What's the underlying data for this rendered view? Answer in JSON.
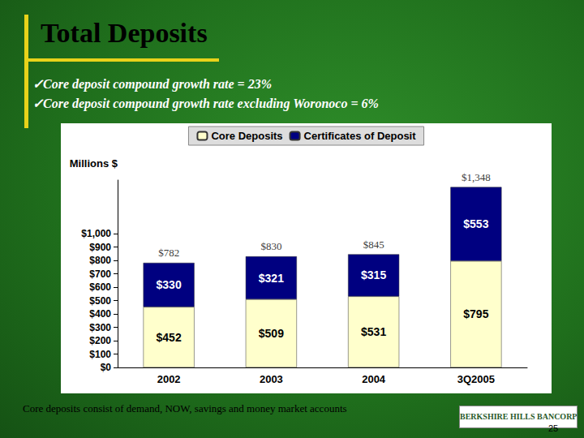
{
  "chart_data": {
    "type": "bar",
    "title": "Total Deposits",
    "annotations": [
      "✓Core deposit compound growth rate = 23%",
      "✓Core deposit compound growth rate excluding Woronoco = 6%"
    ],
    "footnote": "Core deposits consist of demand, NOW, savings and money market accounts",
    "logo": "BERKSHIRE HILLS BANCORP",
    "page_number": 25,
    "y_label": "Millions $",
    "categories": [
      "2002",
      "2003",
      "2004",
      "3Q2005"
    ],
    "series": [
      {
        "name": "Core Deposits",
        "color": "#FFFFCC",
        "values": [
          452,
          509,
          531,
          795
        ],
        "value_labels": [
          "$452",
          "$509",
          "$531",
          "$795"
        ]
      },
      {
        "name": "Certificates of Deposit",
        "color": "#000080",
        "values": [
          330,
          321,
          315,
          553
        ],
        "value_labels": [
          "$330",
          "$321",
          "$315",
          "$553"
        ]
      }
    ],
    "totals": [
      782,
      830,
      845,
      1348
    ],
    "total_labels": [
      "$782",
      "$830",
      "$845",
      "$1,348"
    ],
    "stacked": true,
    "data_labels": true,
    "legend": "top",
    "grid": false,
    "ylim": [
      0,
      1400
    ],
    "yticks": [
      {
        "value": 0,
        "label": "$0"
      },
      {
        "value": 100,
        "label": "$100"
      },
      {
        "value": 200,
        "label": "$200"
      },
      {
        "value": 300,
        "label": "$300"
      },
      {
        "value": 400,
        "label": "$400"
      },
      {
        "value": 500,
        "label": "$500"
      },
      {
        "value": 600,
        "label": "$600"
      },
      {
        "value": 700,
        "label": "$700"
      },
      {
        "value": 800,
        "label": "$800"
      },
      {
        "value": 900,
        "label": "$900"
      },
      {
        "value": 1000,
        "label": "$1,000"
      }
    ]
  }
}
